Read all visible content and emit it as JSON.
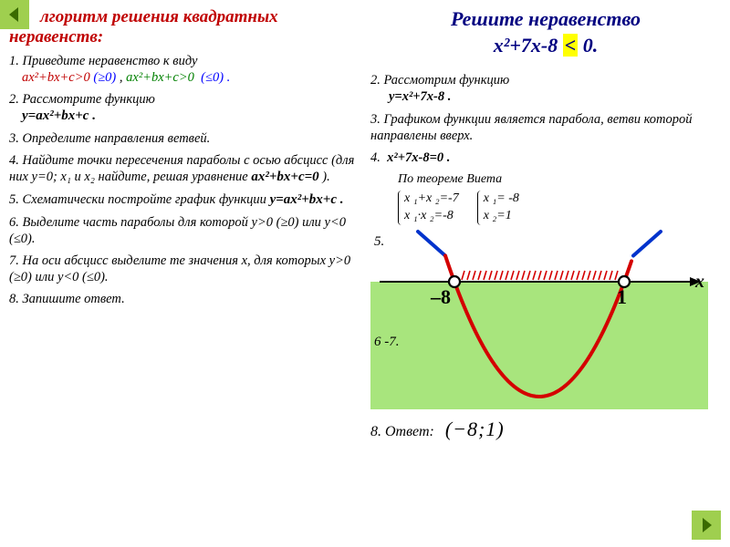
{
  "left": {
    "title": "лгоритм решения квадратных неравенств:",
    "step1_prefix": "1. Приведите неравенство к виду",
    "step1_ax_red": "ах²+bx+c>0",
    "step1_ge": "(≥0)",
    "step1_sep": " ,   ",
    "step1_ax_green": "ах²+bx+c>0",
    "step1_le": "(≤0) .",
    "step2_prefix": "2. Рассмотрите функцию",
    "step2_func": "у=ах²+bx+c .",
    "step3": "3. Определите направления ветвей.",
    "step4_prefix": "4. Найдите точки пересечения параболы с осью абсцисс (для них у=0; х₁ и х₂ найдите, решая уравнение ",
    "step4_eq": "ах²+bx+c=0",
    "step4_suffix": " ).",
    "step5_prefix": "5. Схематически постройте график функции ",
    "step5_func": "у=ах²+bx+c .",
    "step6": "6. Выделите часть параболы для которой у>0 (≥0) или у<0 (≤0).",
    "step7": "7. На оси абсцисс выделите те значения х, для которых у>0 (≥0) или у<0 (≤0).",
    "step8": "8. Запишите ответ."
  },
  "right": {
    "title": "Решите неравенство",
    "ineq_lhs": "х²+7х-8 ",
    "ineq_lt": "<",
    "ineq_rhs": " 0.",
    "step2_prefix": "2. Рассмотрим функцию",
    "step2_func": "у=х²+7х-8 .",
    "step3": "3. Графиком функции является парабола, ветви которой направлены вверх.",
    "step4_label": "4.",
    "step4_eq": "х²+7х-8=0 .",
    "vieta_cap": "По теореме Виета",
    "vieta_sum": "х ₁+х ₂=-7",
    "vieta_prod": "х ₁·х ₂=-8",
    "vieta_x1": "х ₁= -8",
    "vieta_x2": "х ₂=1",
    "step5": "5.",
    "step67": "6 -7.",
    "step8": "8. Ответ:",
    "answer_interval": "(−8;1)",
    "chart": {
      "type": "parabola-number-line",
      "x_axis_label": "х",
      "roots": [
        -8,
        1
      ],
      "root_labels": [
        "–8",
        "1"
      ],
      "root_marker": "open-circle",
      "sign_region": "negative-between-roots",
      "axis_color": "#000000",
      "parabola_color": "#d40000",
      "parabola_width": 4,
      "shade_color": "#99e066",
      "hatch_color": "#d40000",
      "tangent_color": "#0033cc",
      "background": "#ffffff"
    }
  },
  "colors": {
    "title_red": "#c00000",
    "title_blue": "#000080",
    "green_nav": "#9fcf4f",
    "highlight": "#ffff00"
  }
}
